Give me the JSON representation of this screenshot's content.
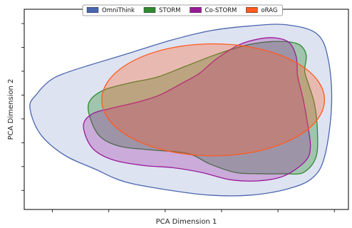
{
  "chart_data": {
    "type": "area",
    "title": "",
    "xlabel": "PCA Dimension 1",
    "ylabel": "PCA Dimension 2",
    "grid": false,
    "legend_placement": "top-center",
    "x_ticks_labeled": false,
    "y_ticks_labeled": false,
    "series": [
      {
        "name": "OmniThink",
        "color": "#4a66b0",
        "fill_opacity": 0.18,
        "outline": [
          [
            -4.8,
            0.5
          ],
          [
            -4.45,
            -0.6
          ],
          [
            -3.6,
            -1.5
          ],
          [
            -2.5,
            -2.1
          ],
          [
            -1.4,
            -2.65
          ],
          [
            0.2,
            -3.0
          ],
          [
            1.6,
            -3.2
          ],
          [
            3.0,
            -3.2
          ],
          [
            4.3,
            -2.95
          ],
          [
            5.2,
            -2.5
          ],
          [
            5.65,
            -1.6
          ],
          [
            5.9,
            0.5
          ],
          [
            5.8,
            2.4
          ],
          [
            5.4,
            3.55
          ],
          [
            4.3,
            3.95
          ],
          [
            3.0,
            3.9
          ],
          [
            1.6,
            3.7
          ],
          [
            0.2,
            3.3
          ],
          [
            -1.3,
            2.75
          ],
          [
            -2.7,
            2.25
          ],
          [
            -3.6,
            1.9
          ],
          [
            -4.1,
            1.6
          ],
          [
            -4.55,
            1.05
          ]
        ]
      },
      {
        "name": "STORM",
        "color": "#2f8a2f",
        "fill_opacity": 0.35,
        "outline": [
          [
            -2.7,
            0.7
          ],
          [
            -2.65,
            0.0
          ],
          [
            -2.3,
            -0.75
          ],
          [
            -1.6,
            -1.15
          ],
          [
            -0.5,
            -1.3
          ],
          [
            0.8,
            -1.45
          ],
          [
            1.6,
            -1.9
          ],
          [
            2.5,
            -2.25
          ],
          [
            3.3,
            -2.3
          ],
          [
            4.2,
            -2.3
          ],
          [
            4.9,
            -2.25
          ],
          [
            5.35,
            -1.6
          ],
          [
            5.4,
            -0.5
          ],
          [
            5.3,
            0.6
          ],
          [
            5.1,
            1.4
          ],
          [
            4.95,
            2.0
          ],
          [
            5.0,
            2.7
          ],
          [
            4.7,
            3.15
          ],
          [
            3.9,
            3.25
          ],
          [
            2.9,
            3.1
          ],
          [
            1.8,
            2.7
          ],
          [
            0.7,
            2.2
          ],
          [
            -0.3,
            1.75
          ],
          [
            -1.3,
            1.5
          ],
          [
            -2.2,
            1.2
          ]
        ]
      },
      {
        "name": "Co-STORM",
        "color": "#9a1a9a",
        "fill_opacity": 0.28,
        "outline": [
          [
            -2.9,
            -0.3
          ],
          [
            -2.6,
            -1.2
          ],
          [
            -1.9,
            -1.7
          ],
          [
            -0.8,
            -1.95
          ],
          [
            0.3,
            -2.05
          ],
          [
            1.3,
            -2.25
          ],
          [
            2.3,
            -2.55
          ],
          [
            3.3,
            -2.6
          ],
          [
            4.2,
            -2.4
          ],
          [
            4.95,
            -1.8
          ],
          [
            5.15,
            -1.2
          ],
          [
            5.05,
            -0.2
          ],
          [
            4.9,
            0.8
          ],
          [
            4.7,
            1.8
          ],
          [
            4.65,
            2.6
          ],
          [
            4.4,
            3.2
          ],
          [
            3.9,
            3.4
          ],
          [
            3.3,
            3.35
          ],
          [
            2.6,
            3.1
          ],
          [
            1.8,
            2.5
          ],
          [
            1.2,
            1.9
          ],
          [
            0.6,
            1.5
          ],
          [
            -0.2,
            1.0
          ],
          [
            -1.0,
            0.7
          ],
          [
            -1.9,
            0.45
          ],
          [
            -2.6,
            0.2
          ]
        ]
      },
      {
        "name": "oRAG",
        "color": "#ff5a1e",
        "fill_opacity": 0.3,
        "ellipse": {
          "cx": 1.7,
          "cy": 0.8,
          "rx": 3.95,
          "ry": 2.35
        }
      }
    ]
  }
}
